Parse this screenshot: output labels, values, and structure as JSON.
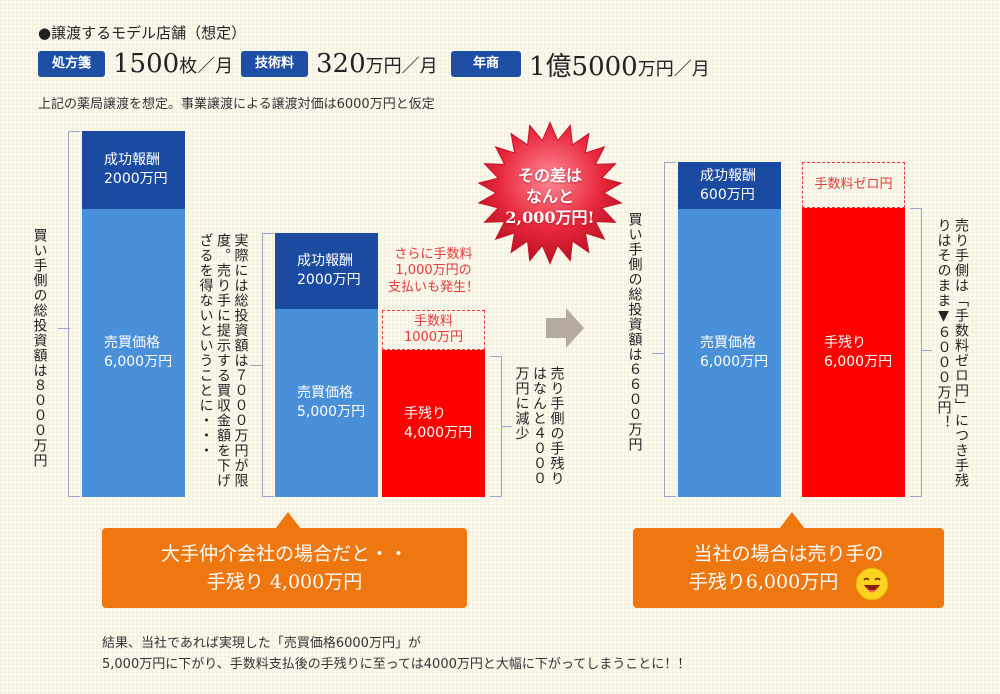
{
  "header": {
    "title": "●譲渡するモデル店舗（想定）",
    "stats": [
      {
        "label": "処方箋",
        "value": "1500",
        "unit": "枚／月"
      },
      {
        "label": "技術料",
        "value": "320",
        "unit": "万円／月"
      },
      {
        "label": "年商",
        "value": "1億5000",
        "unit": "万円／月"
      }
    ],
    "assumption": "上記の薬局譲渡を想定。事業譲渡による譲渡対価は6000万円と仮定"
  },
  "buyer_total_a": "買い手側の総投資額は８０００万円",
  "bar1": {
    "fee_label": "成功報酬",
    "fee_value": "2000万円",
    "price_label": "売買価格",
    "price_value": "6,000万円"
  },
  "limit_note": "実際には総投資額は７０００万円が限度。売り手に提示する買収金額を下げざるを得ないということに・・・",
  "bar2": {
    "fee_label": "成功報酬",
    "fee_value": "2000万円",
    "price_label": "売買価格",
    "price_value": "5,000万円"
  },
  "extra_fee_note": "さらに手数料\n1,000万円の\n支払いも発生！",
  "bar3": {
    "fee_box": "手数料\n1000万円",
    "net_label": "手残り",
    "net_value": "4,000万円"
  },
  "reduced_note": "売り手側の手残りはなんと４０００万円に減少",
  "burst": "その差は\nなんと\n2,000万円!",
  "buyer_total_b": "買い手側の総投資額は６６００万円",
  "bar4": {
    "fee_label": "成功報酬",
    "fee_value": "600万円",
    "price_label": "売買価格",
    "price_value": "6,000万円"
  },
  "bar5": {
    "fee_box": "手数料ゼロ円",
    "net_label": "手残り",
    "net_value": "6,000万円"
  },
  "zero_note": "売り手側は「手数料ゼロ円」につき手残りはそのまま▼６０００万円！",
  "callout_left": {
    "line1": "大手仲介会社の場合だと・・",
    "line2": "手残り 4,000万円"
  },
  "callout_right": {
    "line1": "当社の場合は売り手の",
    "line2": "手残り6,000万円"
  },
  "conclusion": {
    "line1": "結果、当社であれば実現した「売買価格6000万円」が",
    "line2": "5,000万円に下がり、手数料支払後の手残りに至っては4000万円と大幅に下がってしまうことに！！"
  },
  "colors": {
    "navy": "#1b4ba0",
    "blue": "#4a90d9",
    "red": "#ff0000",
    "orange": "#ee7710",
    "badge": "#1f4fa5"
  },
  "icons": {
    "arrow": "right-arrow-icon",
    "smiley": "smiley-face-icon",
    "burst": "starburst-icon"
  }
}
